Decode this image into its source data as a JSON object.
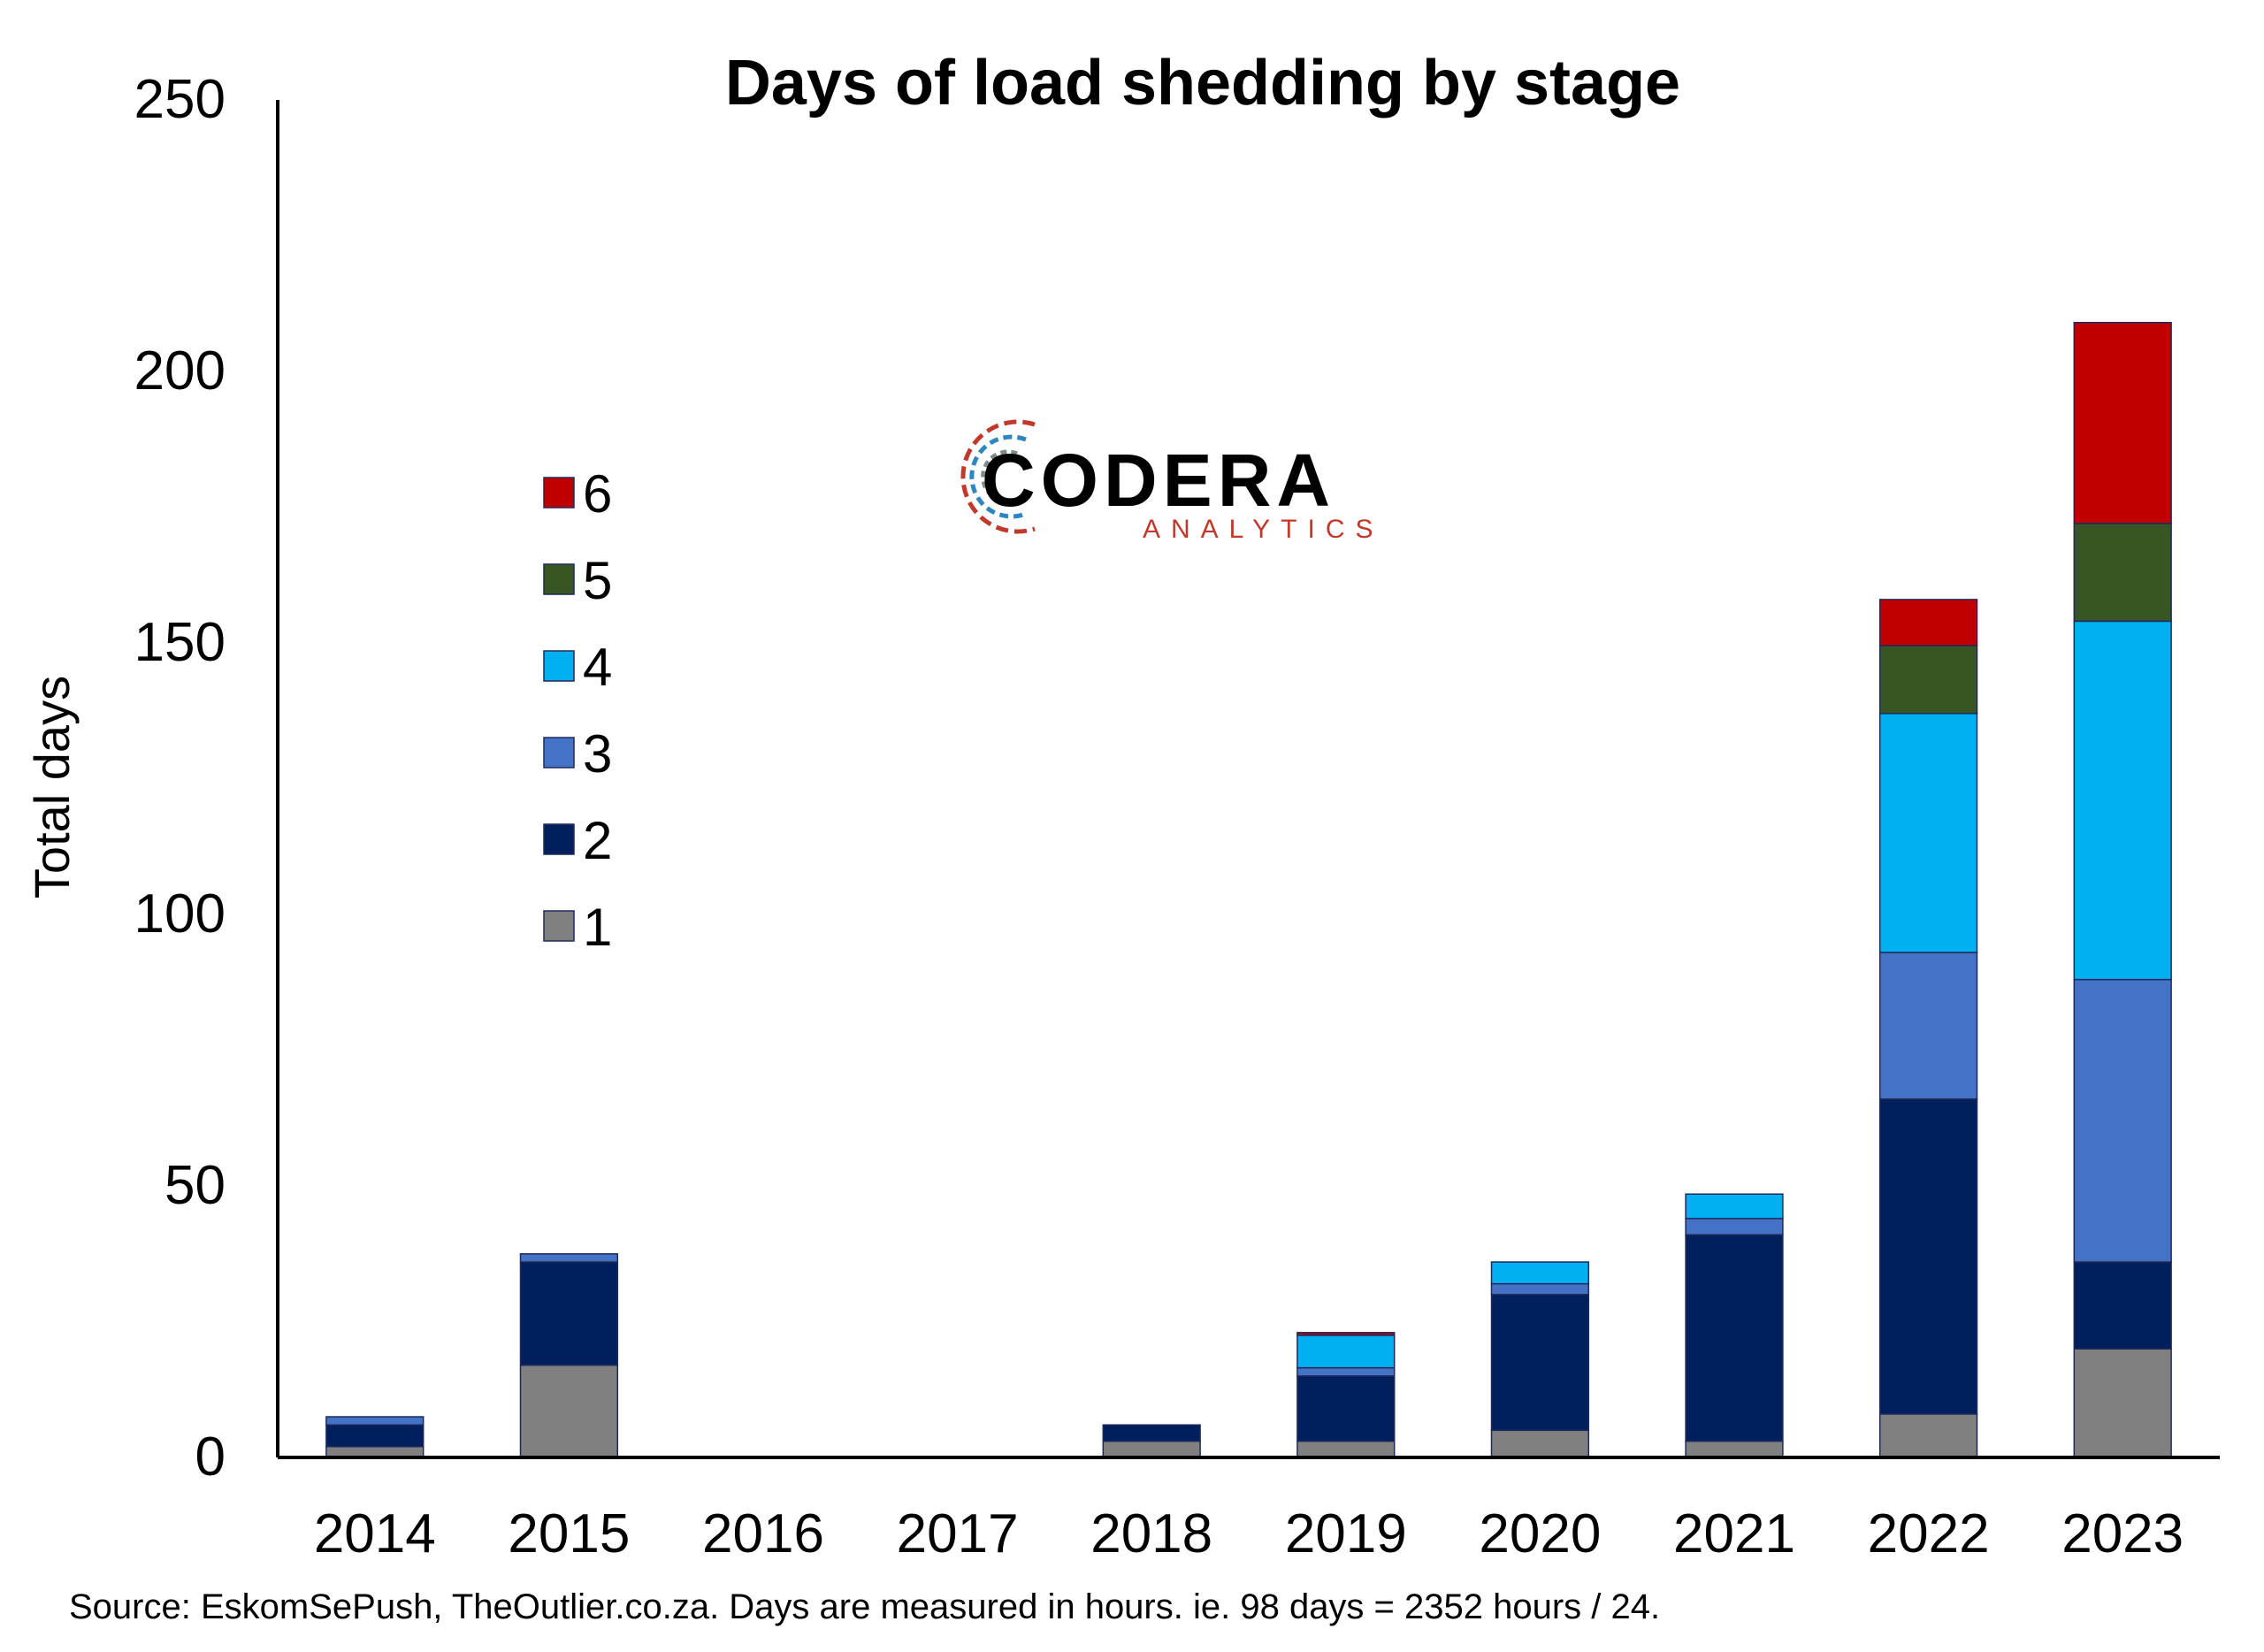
{
  "chart_data": {
    "type": "bar",
    "stacked": true,
    "title": "Days of load shedding by stage",
    "xlabel": "",
    "ylabel": "Total days",
    "ylim": [
      0,
      250
    ],
    "yticks": [
      0,
      50,
      100,
      150,
      200,
      250
    ],
    "grid": false,
    "legend_position": "upper-left (inside plot)",
    "categories": [
      "2014",
      "2015",
      "2016",
      "2017",
      "2018",
      "2019",
      "2020",
      "2021",
      "2022",
      "2023"
    ],
    "series": [
      {
        "name": "1",
        "color": "#808080",
        "values": [
          2,
          17,
          0,
          0,
          3,
          3,
          5,
          3,
          8,
          20
        ]
      },
      {
        "name": "2",
        "color": "#001f5c",
        "values": [
          4,
          19,
          0,
          0,
          3,
          12,
          25,
          38,
          58,
          16
        ]
      },
      {
        "name": "3",
        "color": "#4472c4",
        "values": [
          1.5,
          1.5,
          0,
          0,
          0,
          1.5,
          2,
          3,
          27,
          52
        ]
      },
      {
        "name": "4",
        "color": "#00b0f0",
        "values": [
          0,
          0,
          0,
          0,
          0,
          6,
          4,
          4.5,
          44,
          66
        ]
      },
      {
        "name": "5",
        "color": "#375623",
        "values": [
          0,
          0,
          0,
          0,
          0,
          0,
          0,
          0,
          12.5,
          18
        ]
      },
      {
        "name": "6",
        "color": "#c00000",
        "values": [
          0,
          0,
          0,
          0,
          0,
          0.5,
          0,
          0,
          8.5,
          37
        ]
      }
    ]
  },
  "logo": {
    "name": "CODERA",
    "sub": "ANALYTICS",
    "colors": {
      "text": "#000000",
      "sub": "#c00000",
      "accent_red": "#c0392b",
      "accent_blue": "#2e86c1"
    }
  },
  "source_note": "Source: EskomSePush, TheOutlier.co.za. Days are measured in hours. ie. 98 days = 2352 hours / 24."
}
